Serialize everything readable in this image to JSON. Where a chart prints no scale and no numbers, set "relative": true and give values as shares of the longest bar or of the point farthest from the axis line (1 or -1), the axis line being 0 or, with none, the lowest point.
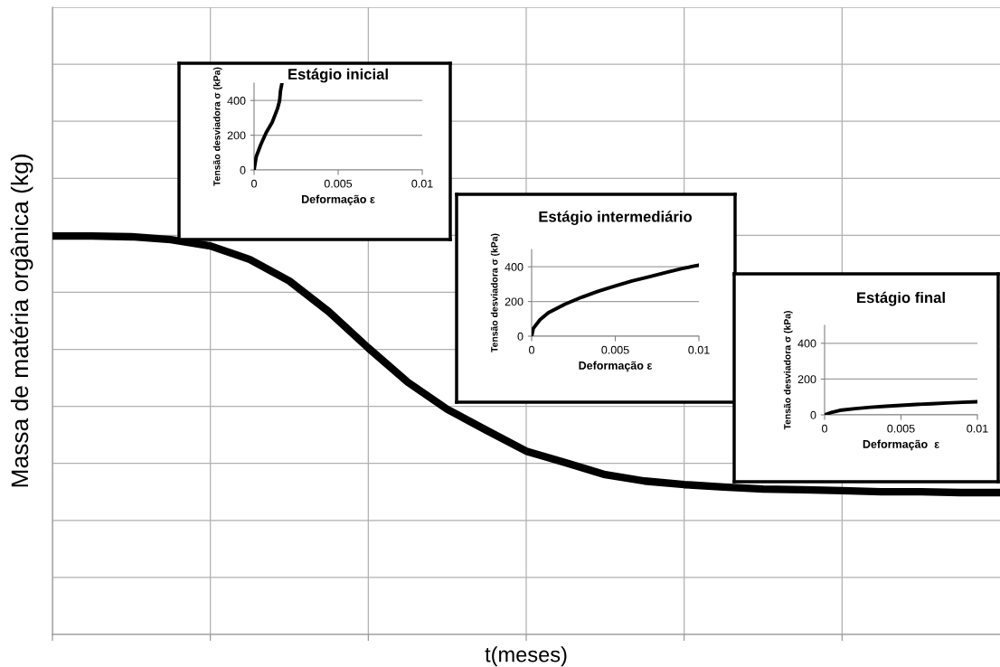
{
  "chart_data": [
    {
      "type": "line",
      "xlabel": "t(meses)",
      "ylabel": "Massa de matéria orgânica (kg)",
      "relative": true,
      "grid": true,
      "tick_labels": false,
      "marker": "none",
      "line_style": "solid",
      "categories": [
        null,
        null,
        null,
        null,
        null,
        null,
        null,
        null,
        null,
        null,
        null,
        null,
        null,
        null,
        null,
        null,
        null,
        null,
        null,
        null,
        null,
        null,
        null,
        null,
        null
      ],
      "series": [
        {
          "color": "#000000",
          "values": [
            1.0,
            1.0,
            0.998,
            0.991,
            0.975,
            0.941,
            0.887,
            0.81,
            0.719,
            0.633,
            0.565,
            0.512,
            0.46,
            0.431,
            0.401,
            0.385,
            0.376,
            0.37,
            0.365,
            0.363,
            0.361,
            0.358,
            0.358,
            0.356,
            0.356
          ]
        }
      ]
    },
    {
      "type": "line",
      "title": "Estágio inicial",
      "xlabel": "Deformação ε",
      "ylabel": "Tensão desviadora σ (kPa)",
      "xlim": [
        0,
        0.01
      ],
      "ylim": [
        0,
        500
      ],
      "xticks": [
        0,
        0.005,
        0.01
      ],
      "yticks": [
        0,
        200,
        400
      ],
      "grid": "y",
      "marker": "none",
      "line_style": "solid",
      "series": [
        {
          "color": "#000000",
          "x": [
            0,
            0.00013,
            0.0004,
            0.00072,
            0.00108,
            0.00139,
            0.00152,
            0.00157,
            0.00166
          ],
          "values": [
            0,
            77,
            146,
            215,
            275,
            352,
            400,
            455,
            500
          ]
        }
      ]
    },
    {
      "type": "line",
      "title": "Estágio intermediário",
      "xlabel": "Deformação ε",
      "ylabel": "Tensão desviadora σ (kPa)",
      "xlim": [
        0,
        0.01
      ],
      "ylim": [
        0,
        500
      ],
      "xticks": [
        0,
        0.005,
        0.01
      ],
      "yticks": [
        0,
        200,
        400
      ],
      "grid": "y",
      "marker": "none",
      "line_style": "solid",
      "series": [
        {
          "color": "#000000",
          "x": [
            0,
            0.0001,
            0.0005,
            0.001,
            0.002,
            0.003,
            0.004,
            0.005,
            0.006,
            0.007,
            0.008,
            0.009,
            0.01
          ],
          "values": [
            0,
            45,
            95,
            135,
            185,
            225,
            260,
            290,
            318,
            342,
            367,
            390,
            410
          ]
        }
      ]
    },
    {
      "type": "line",
      "title": "Estágio final",
      "xlabel": "Deformação  ε",
      "ylabel": "Tensão desviadora σ (kPa)",
      "xlim": [
        0,
        0.01
      ],
      "ylim": [
        0,
        500
      ],
      "xticks": [
        0,
        0.005,
        0.01
      ],
      "yticks": [
        0,
        200,
        400
      ],
      "grid": "y",
      "marker": "none",
      "line_style": "solid",
      "series": [
        {
          "color": "#000000",
          "x": [
            0,
            0.0005,
            0.001,
            0.002,
            0.003,
            0.004,
            0.005,
            0.006,
            0.007,
            0.008,
            0.009,
            0.01
          ],
          "values": [
            0,
            15,
            25,
            35,
            42,
            48,
            53,
            58,
            62,
            66,
            70,
            73
          ]
        }
      ]
    }
  ]
}
